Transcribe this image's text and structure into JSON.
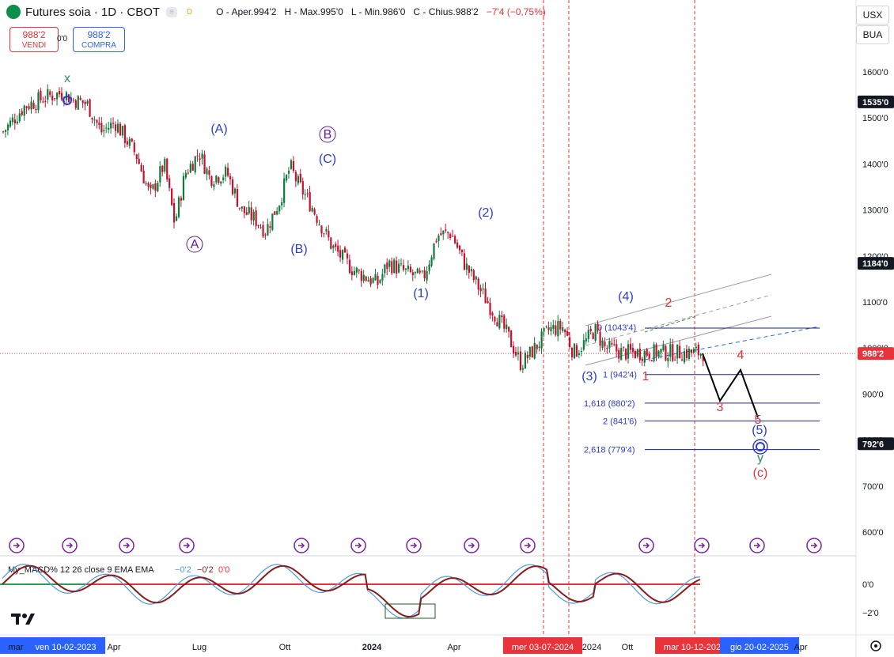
{
  "header": {
    "symbol_title": "Futures soia · 1D · CBOT",
    "pill_1": "≡",
    "pill_2": "D",
    "ohlc_open": "O - Aper.994'2",
    "ohlc_high": "H - Max.995'0",
    "ohlc_low": "L - Min.986'0",
    "ohlc_close": "C - Chius.988'2",
    "ohlc_change": "−7'4 (−0,75%)",
    "sell_price": "988'2",
    "sell_label": "VENDI",
    "spread": "0'0",
    "buy_price": "988'2",
    "buy_label": "COMPRA"
  },
  "currency_selector": "USX",
  "unit_selector": "BUA",
  "colors": {
    "wave_blue": "#2c3bd6",
    "wave_red": "#e8333a",
    "wave_green": "#2e8b57",
    "up_candle": "#0d7c3a",
    "down_candle": "#c8102e",
    "price_line": "#e8333a",
    "macd_line": "#4a9be8",
    "signal_line": "#8b1a1a"
  },
  "chart_data": {
    "type": "candlestick",
    "symbol": "Futures soia",
    "timeframe": "1D",
    "exchange": "CBOT",
    "ylim": [
      550,
      1660
    ],
    "y_ticks": [
      "1600'0",
      "1500'0",
      "1400'0",
      "1300'0",
      "1200'0",
      "1100'0",
      "1000'0",
      "900'0",
      "800'0",
      "700'0",
      "600'0"
    ],
    "y_tick_values": [
      1600,
      1500,
      1400,
      1300,
      1200,
      1100,
      1000,
      900,
      800,
      700,
      600
    ],
    "price_badges": [
      {
        "label": "1535'0",
        "value": 1535,
        "color": "#131722"
      },
      {
        "label": "1184'0",
        "value": 1184,
        "color": "#131722"
      },
      {
        "label": "988'2",
        "value": 988,
        "color": "#e8333a"
      },
      {
        "label": "792'6",
        "value": 792,
        "color": "#131722"
      }
    ],
    "x_ticks": [
      "mar",
      "ven 10-02-2023",
      "Apr",
      "Lug",
      "Ott",
      "2024",
      "Apr",
      "mer 03-07-2024",
      "2024",
      "Ott",
      "mar 10-12-202",
      "gio 20-02-2025",
      "Apr"
    ],
    "price_path": [
      [
        0,
        1470
      ],
      [
        0.03,
        1525
      ],
      [
        0.06,
        1545
      ],
      [
        0.085,
        1555
      ],
      [
        0.1,
        1540
      ],
      [
        0.12,
        1530
      ],
      [
        0.14,
        1470
      ],
      [
        0.16,
        1490
      ],
      [
        0.19,
        1420
      ],
      [
        0.21,
        1330
      ],
      [
        0.23,
        1400
      ],
      [
        0.245,
        1270
      ],
      [
        0.26,
        1380
      ],
      [
        0.28,
        1425
      ],
      [
        0.295,
        1370
      ],
      [
        0.32,
        1380
      ],
      [
        0.34,
        1300
      ],
      [
        0.36,
        1280
      ],
      [
        0.375,
        1255
      ],
      [
        0.395,
        1320
      ],
      [
        0.41,
        1395
      ],
      [
        0.42,
        1360
      ],
      [
        0.44,
        1310
      ],
      [
        0.47,
        1220
      ],
      [
        0.5,
        1170
      ],
      [
        0.535,
        1140
      ],
      [
        0.55,
        1185
      ],
      [
        0.575,
        1165
      ],
      [
        0.6,
        1150
      ],
      [
        0.62,
        1245
      ],
      [
        0.64,
        1250
      ],
      [
        0.66,
        1180
      ],
      [
        0.68,
        1130
      ],
      [
        0.7,
        1080
      ],
      [
        0.72,
        1030
      ],
      [
        0.74,
        965
      ],
      [
        0.76,
        1000
      ],
      [
        0.78,
        1040
      ],
      [
        0.8,
        1045
      ],
      [
        0.815,
        990
      ],
      [
        0.83,
        1010
      ],
      [
        0.845,
        1040
      ],
      [
        0.86,
        1000
      ],
      [
        0.875,
        995
      ],
      [
        0.885,
        990
      ]
    ],
    "wave_labels": [
      {
        "text": "x",
        "x": 85,
        "y": 104,
        "color": "green"
      },
      {
        "text": "(A)",
        "x": 277,
        "y": 168,
        "color": "blue"
      },
      {
        "text": "B",
        "x": 414,
        "y": 175,
        "color": "blue",
        "circled": true
      },
      {
        "text": "(C)",
        "x": 414,
        "y": 206,
        "color": "blue"
      },
      {
        "text": "A",
        "x": 246,
        "y": 314,
        "color": "blue",
        "circled": true
      },
      {
        "text": "(B)",
        "x": 378,
        "y": 320,
        "color": "blue"
      },
      {
        "text": "(2)",
        "x": 614,
        "y": 274,
        "color": "blue"
      },
      {
        "text": "(1)",
        "x": 532,
        "y": 376,
        "color": "blue"
      },
      {
        "text": "(4)",
        "x": 791,
        "y": 380,
        "color": "blue"
      },
      {
        "text": "(3)",
        "x": 745,
        "y": 481,
        "color": "blue"
      },
      {
        "text": "2",
        "x": 845,
        "y": 388,
        "color": "red"
      },
      {
        "text": "1",
        "x": 816,
        "y": 481,
        "color": "red"
      },
      {
        "text": "3",
        "x": 910,
        "y": 520,
        "color": "red"
      },
      {
        "text": "4",
        "x": 936,
        "y": 454,
        "color": "red"
      },
      {
        "text": "5",
        "x": 958,
        "y": 536,
        "color": "red"
      },
      {
        "text": "(5)",
        "x": 960,
        "y": 549,
        "color": "blue"
      },
      {
        "text": "y",
        "x": 961,
        "y": 584,
        "color": "green"
      },
      {
        "text": "(c)",
        "x": 961,
        "y": 603,
        "color": "red"
      }
    ],
    "fib_levels": [
      {
        "label": "0 (1043'4)",
        "value": 1043.4
      },
      {
        "label": "1 (942'4)",
        "value": 942.4
      },
      {
        "label": "1,618 (880'2)",
        "value": 880.2
      },
      {
        "label": "2 (841'6)",
        "value": 841.6
      },
      {
        "label": "2,618 (779'4)",
        "value": 779.4
      }
    ],
    "projection_path": [
      [
        888,
        447
      ],
      [
        910,
        507
      ],
      [
        936,
        468
      ],
      [
        958,
        528
      ]
    ],
    "macd": {
      "title": "My_MACD% 12 26 close 9 EMA EMA",
      "values": [
        "−0'2",
        "−0'2",
        "0'0"
      ],
      "y_ticks": [
        "0'0",
        "−2'0"
      ],
      "y_tick_values": [
        0,
        -2
      ],
      "ylim": [
        -3.3,
        1.8
      ]
    }
  }
}
